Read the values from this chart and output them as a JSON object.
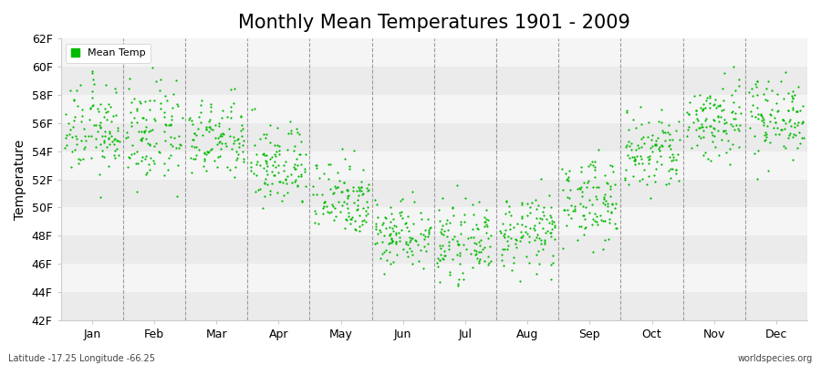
{
  "title": "Monthly Mean Temperatures 1901 - 2009",
  "ylabel": "Temperature",
  "xlabel": "",
  "ylim": [
    42,
    62
  ],
  "yticks": [
    42,
    44,
    46,
    48,
    50,
    52,
    54,
    56,
    58,
    60,
    62
  ],
  "ytick_labels": [
    "42F",
    "44F",
    "46F",
    "48F",
    "50F",
    "52F",
    "54F",
    "56F",
    "58F",
    "60F",
    "62F"
  ],
  "month_labels": [
    "Jan",
    "Feb",
    "Mar",
    "Apr",
    "May",
    "Jun",
    "Jul",
    "Aug",
    "Sep",
    "Oct",
    "Nov",
    "Dec"
  ],
  "dot_color": "#00bb00",
  "background_color": "#ffffff",
  "band_colors": [
    "#ebebeb",
    "#f5f5f5"
  ],
  "legend_label": "Mean Temp",
  "bottom_left_text": "Latitude -17.25 Longitude -66.25",
  "bottom_right_text": "worldspecies.org",
  "title_fontsize": 15,
  "axis_fontsize": 9,
  "month_means": [
    55.5,
    55.2,
    54.8,
    53.0,
    50.8,
    48.2,
    47.5,
    48.2,
    50.5,
    53.8,
    56.2,
    56.5
  ],
  "month_stds": [
    1.6,
    1.8,
    1.4,
    1.5,
    1.4,
    1.2,
    1.2,
    1.3,
    1.5,
    1.5,
    1.5,
    1.4
  ],
  "n_years": 109,
  "seed": 12345,
  "dot_size": 2.5,
  "xlim": [
    -0.5,
    12.5
  ],
  "dashed_line_color": "#888888",
  "spine_color": "#cccccc"
}
